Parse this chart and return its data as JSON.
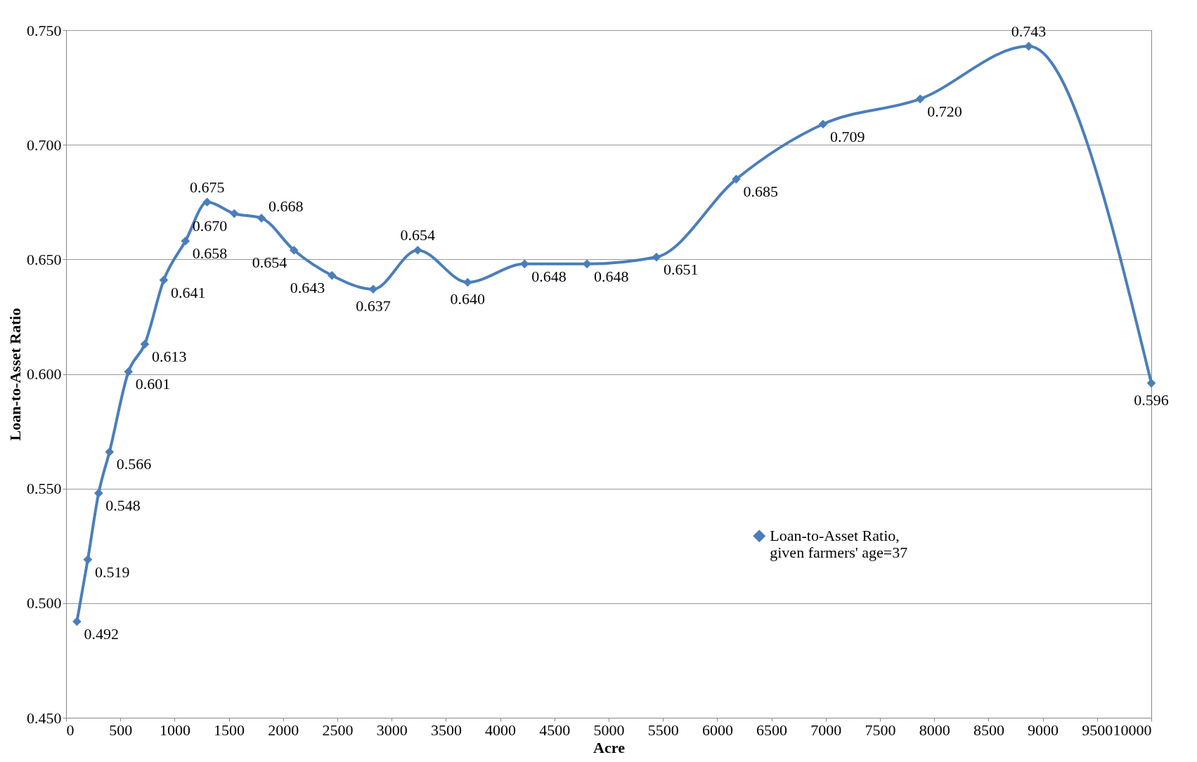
{
  "chart_data": {
    "type": "line",
    "xlabel": "Acre",
    "ylabel": "Loan-to-Asset Ratio",
    "x": [
      100,
      200,
      300,
      400,
      575,
      725,
      900,
      1100,
      1300,
      1550,
      1800,
      2100,
      2450,
      2830,
      3240,
      3700,
      4225,
      4800,
      5440,
      6175,
      6975,
      7870,
      8870,
      10000
    ],
    "series": [
      {
        "name": "Loan-to-Asset Ratio,\ngiven farmers' age=37",
        "color": "#4a7ebb",
        "values": [
          0.492,
          0.519,
          0.548,
          0.566,
          0.601,
          0.613,
          0.641,
          0.658,
          0.675,
          0.67,
          0.668,
          0.654,
          0.643,
          0.637,
          0.654,
          0.64,
          0.648,
          0.648,
          0.651,
          0.685,
          0.709,
          0.72,
          0.743,
          0.596
        ],
        "value_labels": [
          "0.492",
          "0.519",
          "0.548",
          "0.566",
          "0.601",
          "0.613",
          "0.641",
          "0.658",
          "0.675",
          "0.670",
          "0.668",
          "0.654",
          "0.643",
          "0.637",
          "0.654",
          "0.640",
          "0.648",
          "0.648",
          "0.651",
          "0.685",
          "0.709",
          "0.720",
          "0.743",
          "0.596"
        ]
      }
    ],
    "xlim": [
      0,
      10000
    ],
    "xticks": [
      0,
      500,
      1000,
      1500,
      2000,
      2500,
      3000,
      3500,
      4000,
      4500,
      5000,
      5500,
      6000,
      6500,
      7000,
      7500,
      8000,
      8500,
      9000,
      9500,
      10000
    ],
    "ylim": [
      0.45,
      0.75
    ],
    "yticks": [
      {
        "value": 0.45,
        "label": "0.450"
      },
      {
        "value": 0.5,
        "label": "0.500"
      },
      {
        "value": 0.55,
        "label": "0.550"
      },
      {
        "value": 0.6,
        "label": "0.600"
      },
      {
        "value": 0.65,
        "label": "0.650"
      },
      {
        "value": 0.7,
        "label": "0.700"
      },
      {
        "value": 0.75,
        "label": "0.750"
      }
    ],
    "grid": "y",
    "legend": "right",
    "marker": "diamond",
    "line_style": "solid"
  }
}
